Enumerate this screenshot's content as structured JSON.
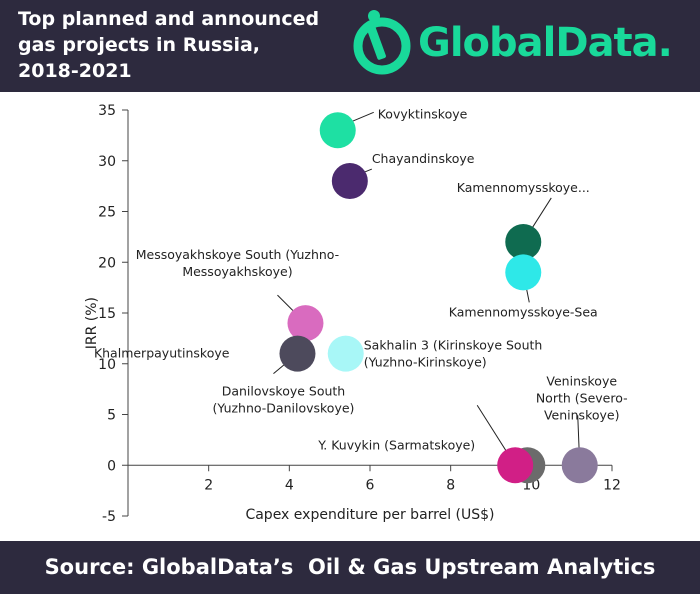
{
  "header": {
    "title_lines": [
      "Top planned and announced",
      "gas projects in Russia,",
      "2018-2021"
    ],
    "brand": "GlobalData."
  },
  "footer": {
    "source": "Source: GlobalData’s  Oil & Gas Upstream Analytics"
  },
  "colors": {
    "header_bg": "#2d2a3e",
    "brand_green": "#19d99a"
  },
  "chart_data": {
    "type": "scatter",
    "xlabel": "Capex expenditure per barrel (US$)",
    "ylabel": "IRR (%)",
    "xlim": [
      0,
      12
    ],
    "ylim": [
      -5,
      35
    ],
    "xticks": [
      2,
      4,
      6,
      8,
      10,
      12
    ],
    "yticks": [
      -5,
      0,
      5,
      10,
      15,
      20,
      25,
      30,
      35
    ],
    "grid": false,
    "legend": "none",
    "points": [
      {
        "label": "Kovyktinskoye",
        "x": 5.2,
        "y": 33,
        "color": "#1ee0a3"
      },
      {
        "label": "Chayandinskoye",
        "x": 5.5,
        "y": 28,
        "color": "#4b2a6e"
      },
      {
        "label": "Kamennomysskoye...",
        "x": 9.8,
        "y": 22,
        "color": "#0f6b50"
      },
      {
        "label": "Kamennomysskoye-Sea",
        "x": 9.8,
        "y": 19,
        "color": "#2ee8e8"
      },
      {
        "label": "Messoyakhskoye South (Yuzhno-Messoyakhskoye)",
        "x": 4.4,
        "y": 14,
        "color": "#d96bbf"
      },
      {
        "label": "Khalmerpayutinskoye",
        "x": 4.4,
        "y": 11,
        "color": "#4d4a5c"
      },
      {
        "label": "Sakhalin 3 (Kirinskoye South (Yuzhno-Kirinskoye)",
        "x": 5.2,
        "y": 11,
        "color": "#a8f7f7"
      },
      {
        "label": "Danilovskoye South (Yuzhno-Danilovskoye)",
        "x": 4.4,
        "y": 11,
        "color": "#4d4a5c"
      },
      {
        "label": "Y. Kuvykin (Sarmatskoye)",
        "x": 9.6,
        "y": 0,
        "color": "#d11f86"
      },
      {
        "label": "Veninskoye North (Severo-Veninskoye)",
        "x": 11.2,
        "y": 0,
        "color": "#8a7a9c"
      }
    ],
    "extra_points": [
      {
        "x": 9.9,
        "y": 0,
        "color": "#6b6b6b"
      }
    ]
  }
}
